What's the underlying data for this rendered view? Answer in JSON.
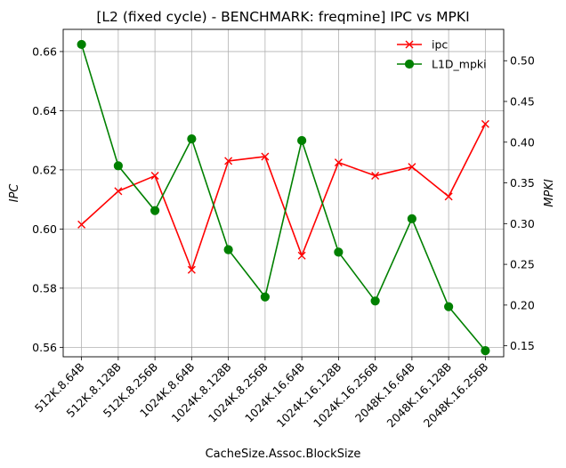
{
  "chart_data": {
    "type": "line",
    "title": "[L2 (fixed cycle) - BENCHMARK: freqmine]  IPC vs MPKI",
    "xlabel": "CacheSize.Assoc.BlockSize",
    "ylabel_left": "IPC",
    "ylabel_right": "MPKI",
    "categories": [
      "512K.8.64B",
      "512K.8.128B",
      "512K.8.256B",
      "1024K.8.64B",
      "1024K.8.128B",
      "1024K.8.256B",
      "1024K.16.64B",
      "1024K.16.128B",
      "1024K.16.256B",
      "2048K.16.64B",
      "2048K.16.128B",
      "2048K.16.256B"
    ],
    "ylim_left": [
      0.5568,
      0.6675
    ],
    "ylim_right": [
      0.1365,
      0.5385
    ],
    "yticks_left": [
      "0.56",
      "0.58",
      "0.60",
      "0.62",
      "0.64",
      "0.66"
    ],
    "yticks_right": [
      "0.15",
      "0.20",
      "0.25",
      "0.30",
      "0.35",
      "0.40",
      "0.45",
      "0.50"
    ],
    "grid": true,
    "legend_position": "top-right",
    "series": [
      {
        "name": "ipc",
        "axis": "left",
        "color": "#ff0000",
        "marker": "x",
        "values": [
          0.6015,
          0.6128,
          0.618,
          0.5862,
          0.623,
          0.6245,
          0.591,
          0.6225,
          0.618,
          0.621,
          0.611,
          0.6355
        ]
      },
      {
        "name": "L1D_mpki",
        "axis": "right",
        "color": "#008000",
        "marker": "o",
        "values": [
          0.52,
          0.371,
          0.316,
          0.404,
          0.268,
          0.21,
          0.402,
          0.265,
          0.205,
          0.306,
          0.198,
          0.144
        ]
      }
    ]
  }
}
